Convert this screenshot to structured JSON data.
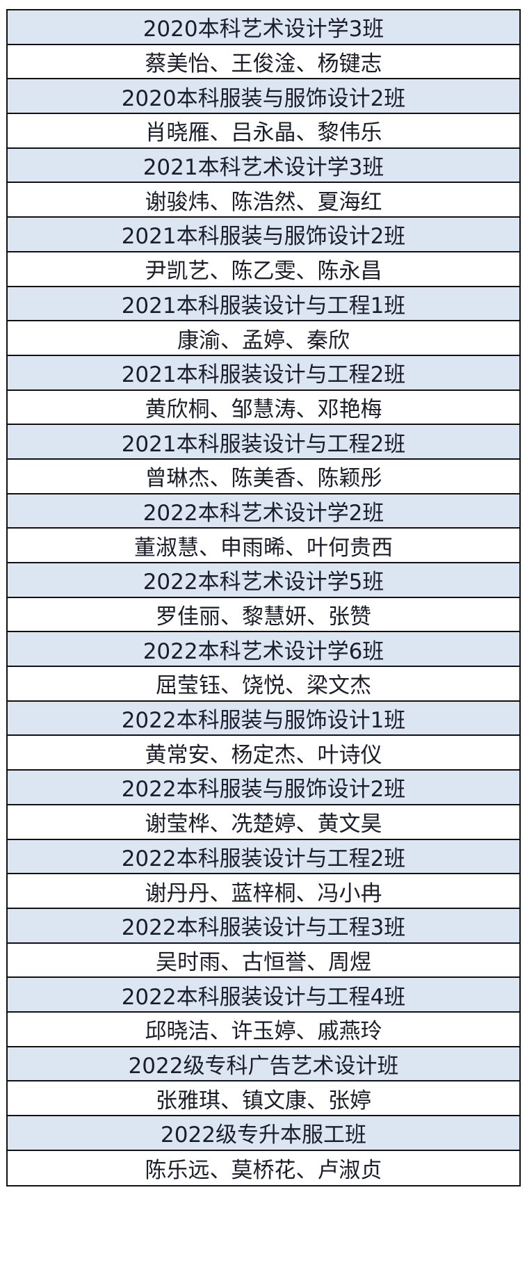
{
  "colors": {
    "class_row_bg": "#dce6f2",
    "name_row_bg": "#ffffff",
    "border": "#111111",
    "text": "#1b1d2b"
  },
  "groups": [
    {
      "class": "2020本科艺术设计学3班",
      "names": "蔡美怡、王俊淦、杨键志"
    },
    {
      "class": "2020本科服装与服饰设计2班",
      "names": "肖晓雁、吕永晶、黎伟乐"
    },
    {
      "class": "2021本科艺术设计学3班",
      "names": "谢骏炜、陈浩然、夏海红"
    },
    {
      "class": "2021本科服装与服饰设计2班",
      "names": "尹凯艺、陈乙雯、陈永昌"
    },
    {
      "class": "2021本科服装设计与工程1班",
      "names": "康渝、孟婷、秦欣"
    },
    {
      "class": "2021本科服装设计与工程2班",
      "names": "黄欣桐、邹慧涛、邓艳梅"
    },
    {
      "class": "2021本科服装设计与工程2班",
      "names": "曾琳杰、陈美香、陈颖彤"
    },
    {
      "class": "2022本科艺术设计学2班",
      "names": "董淑慧、申雨晞、叶何贵西"
    },
    {
      "class": "2022本科艺术设计学5班",
      "names": "罗佳丽、黎慧妍、张赞"
    },
    {
      "class": "2022本科艺术设计学6班",
      "names": "屈莹钰、饶悦、梁文杰"
    },
    {
      "class": "2022本科服装与服饰设计1班",
      "names": "黄常安、杨定杰、叶诗仪"
    },
    {
      "class": "2022本科服装与服饰设计2班",
      "names": "谢莹桦、冼楚婷、黄文昊"
    },
    {
      "class": "2022本科服装设计与工程2班",
      "names": "谢丹丹、蓝梓桐、冯小冉"
    },
    {
      "class": "2022本科服装设计与工程3班",
      "names": "吴时雨、古恒誉、周煜"
    },
    {
      "class": "2022本科服装设计与工程4班",
      "names": "邱晓洁、许玉婷、戚燕玲"
    },
    {
      "class": "2022级专科广告艺术设计班",
      "names": "张雅琪、镇文康、张婷"
    },
    {
      "class": "2022级专升本服工班",
      "names": "陈乐远、莫桥花、卢淑贞"
    }
  ]
}
